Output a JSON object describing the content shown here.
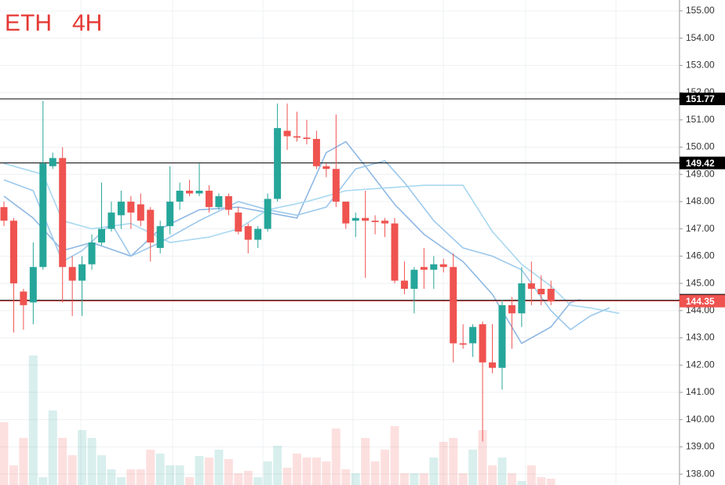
{
  "chart_data": {
    "type": "candlestick",
    "title": "ETH",
    "interval": "4H",
    "open": [
      147.8,
      147.3,
      144.7,
      144.3,
      145.6,
      149.3,
      149.6,
      145.6,
      145.1,
      145.7,
      146.5,
      147.0,
      147.5,
      148.0,
      147.9,
      147.7,
      146.3,
      147.1,
      148.0,
      148.4,
      148.3,
      148.4,
      147.8,
      148.2,
      147.6,
      147.1,
      146.6,
      147.0,
      148.1,
      150.6,
      150.4,
      150.35,
      150.3,
      149.3,
      149.2,
      148.0,
      147.3,
      147.4,
      147.3,
      147.3,
      147.2,
      145.1,
      144.8,
      145.6,
      145.5,
      145.7,
      145.6,
      142.8,
      142.8,
      143.5,
      142.1,
      141.9,
      144.2,
      143.9,
      145.0,
      144.8,
      144.8
    ],
    "high": [
      148.0,
      147.4,
      144.8,
      146.5,
      151.7,
      149.8,
      150.0,
      146.0,
      146.0,
      146.8,
      148.7,
      148.0,
      148.4,
      148.2,
      148.3,
      147.8,
      147.3,
      149.3,
      148.7,
      148.8,
      149.4,
      148.6,
      148.3,
      148.3,
      147.8,
      147.2,
      147.1,
      148.3,
      151.6,
      151.6,
      151.3,
      151.0,
      150.6,
      149.4,
      151.2,
      148.0,
      147.6,
      148.4,
      147.5,
      147.4,
      147.4,
      145.8,
      145.6,
      146.3,
      146.0,
      145.9,
      146.1,
      143.5,
      143.5,
      143.6,
      143.5,
      144.4,
      144.5,
      145.6,
      145.8,
      145.3,
      145.1
    ],
    "low": [
      147.1,
      143.2,
      143.3,
      143.5,
      145.5,
      149.2,
      144.3,
      143.8,
      143.8,
      145.5,
      146.4,
      146.9,
      147.0,
      147.0,
      147.1,
      145.8,
      146.1,
      146.8,
      147.7,
      148.2,
      148.2,
      147.6,
      147.7,
      147.5,
      146.8,
      146.1,
      146.3,
      146.9,
      148.0,
      149.9,
      150.2,
      150.1,
      149.2,
      148.9,
      147.8,
      147.0,
      146.7,
      145.2,
      146.8,
      146.7,
      145.0,
      144.6,
      143.9,
      144.8,
      144.8,
      145.4,
      142.1,
      142.6,
      142.3,
      139.2,
      141.7,
      141.1,
      142.6,
      143.4,
      144.2,
      144.2,
      144.2
    ],
    "close": [
      147.3,
      145.0,
      144.2,
      145.6,
      149.4,
      149.6,
      145.6,
      145.1,
      145.7,
      146.5,
      147.0,
      147.6,
      148.0,
      147.6,
      147.3,
      146.5,
      147.1,
      148.0,
      148.4,
      148.3,
      148.4,
      147.8,
      148.2,
      147.7,
      146.9,
      146.6,
      147.0,
      148.1,
      150.7,
      150.4,
      150.35,
      150.3,
      149.3,
      149.2,
      148.0,
      147.2,
      147.4,
      147.3,
      147.25,
      147.2,
      145.1,
      144.8,
      145.5,
      145.5,
      145.7,
      145.6,
      142.8,
      142.75,
      143.4,
      142.1,
      141.9,
      144.2,
      143.9,
      145.0,
      144.8,
      144.6,
      144.35
    ],
    "volume": [
      80,
      25,
      60,
      165,
      10,
      95,
      60,
      38,
      70,
      60,
      38,
      20,
      10,
      20,
      20,
      45,
      40,
      25,
      25,
      10,
      37,
      35,
      45,
      33,
      15,
      18,
      10,
      30,
      50,
      22,
      40,
      35,
      35,
      30,
      72,
      20,
      15,
      60,
      30,
      45,
      75,
      15,
      15,
      15,
      35,
      55,
      60,
      15,
      45,
      70,
      25,
      35,
      15,
      5,
      25,
      10,
      8
    ],
    "vlim": [
      0,
      200
    ],
    "up_color": "#26a69a",
    "down_color": "#ef5350",
    "ylim": [
      137.6,
      155.4
    ],
    "yticks": [
      {
        "value": 138,
        "label": "138.00"
      },
      {
        "value": 139,
        "label": "139.00"
      },
      {
        "value": 140,
        "label": "140.00"
      },
      {
        "value": 141,
        "label": "141.00"
      },
      {
        "value": 142,
        "label": "142.00"
      },
      {
        "value": 143,
        "label": "143.00"
      },
      {
        "value": 144,
        "label": "144.00"
      },
      {
        "value": 145,
        "label": "145.00"
      },
      {
        "value": 146,
        "label": "146.00"
      },
      {
        "value": 147,
        "label": "147.00"
      },
      {
        "value": 148,
        "label": "148.00"
      },
      {
        "value": 149,
        "label": "149.00"
      },
      {
        "value": 150,
        "label": "150.00"
      },
      {
        "value": 151,
        "label": "151.00"
      },
      {
        "value": 152,
        "label": "152.00"
      },
      {
        "value": 153,
        "label": "153.00"
      },
      {
        "value": 154,
        "label": "154.00"
      },
      {
        "value": 155,
        "label": "155.00"
      }
    ],
    "levels": [
      {
        "value": 151.77,
        "color": "#000000"
      },
      {
        "value": 149.42,
        "color": "#000000"
      },
      {
        "value": 144.38,
        "color": "#000000"
      },
      {
        "value": 144.35,
        "color": "#ef5350"
      }
    ],
    "lines": [
      {
        "color": "#8fb8e3",
        "x": [
          0,
          3,
          6,
          9,
          13,
          16,
          20,
          24,
          27,
          30,
          33,
          35,
          37,
          40,
          43,
          47,
          50,
          53,
          56,
          58,
          59
        ],
        "values": [
          148.2,
          147.4,
          146.2,
          146.5,
          146.0,
          147.0,
          147.7,
          147.8,
          147.6,
          147.4,
          149.8,
          150.2,
          149.3,
          147.9,
          146.8,
          145.8,
          144.6,
          142.8,
          143.4,
          144.3,
          144.4
        ]
      },
      {
        "color": "#a8d8f0",
        "x": [
          0,
          4,
          6,
          9,
          13,
          17,
          21,
          24,
          27,
          31,
          35,
          39,
          43,
          47,
          50,
          53,
          56,
          58,
          60,
          63
        ],
        "values": [
          149.4,
          149.0,
          147.3,
          147.0,
          147.2,
          146.5,
          146.7,
          147.0,
          147.7,
          148.0,
          148.4,
          148.5,
          148.6,
          148.6,
          146.9,
          145.7,
          144.9,
          144.2,
          144.1,
          143.9
        ]
      },
      {
        "color": "#9cc8ec",
        "x": [
          0,
          3,
          6,
          8,
          11,
          13,
          16,
          20,
          24,
          27,
          30,
          33,
          36,
          39,
          41,
          44,
          47,
          50,
          53,
          56,
          58,
          60,
          62
        ],
        "values": [
          148.8,
          148.4,
          145.8,
          146.2,
          147.2,
          146.0,
          146.5,
          147.3,
          148.0,
          147.7,
          147.5,
          147.8,
          149.2,
          149.5,
          148.7,
          147.3,
          146.3,
          146.0,
          145.5,
          144.0,
          143.3,
          143.8,
          144.1
        ]
      }
    ],
    "grid": true
  }
}
